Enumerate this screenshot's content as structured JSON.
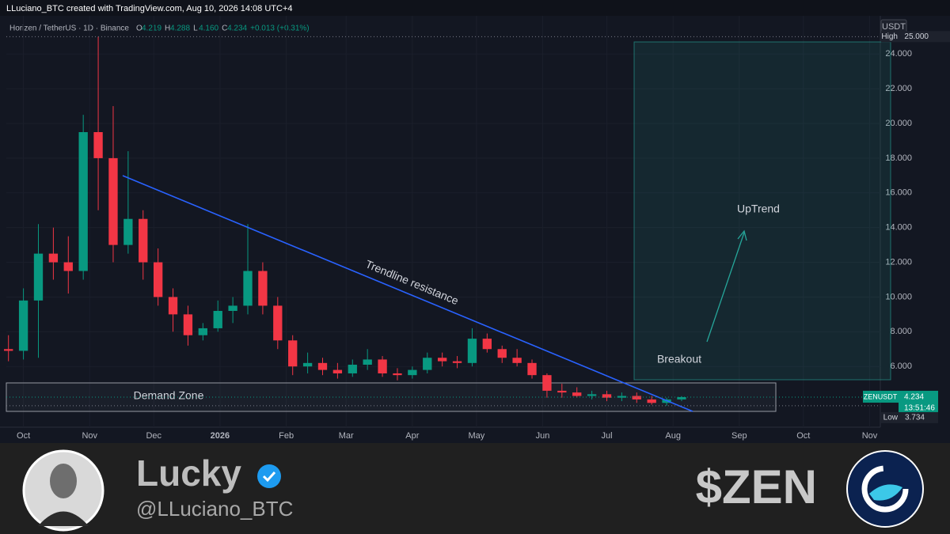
{
  "header": {
    "attribution": "LLuciano_BTC created with TradingView.com, Aug 10, 2026 14:08 UTC+4"
  },
  "chart_data": {
    "type": "candlestick",
    "symbol": "Horizen / TetherUS · 1D · Binance",
    "ohlc_legend": [
      {
        "label": "O",
        "value": "4.219"
      },
      {
        "label": "H",
        "value": "4.288"
      },
      {
        "label": "L",
        "value": "4.160"
      },
      {
        "label": "C",
        "value": "4.234"
      }
    ],
    "change": "+0.013 (+0.31%)",
    "currency": "USDT",
    "up_color": "#089981",
    "down_color": "#f23645",
    "grid": true,
    "xlim": [
      -8,
      401
    ],
    "ylim": [
      2.5,
      26.2
    ],
    "xticks": [
      {
        "value": 0,
        "label": "Oct"
      },
      {
        "value": 31,
        "label": "Nov"
      },
      {
        "value": 61,
        "label": "Dec"
      },
      {
        "value": 92,
        "label": "2026"
      },
      {
        "value": 123,
        "label": "Feb"
      },
      {
        "value": 151,
        "label": "Mar"
      },
      {
        "value": 182,
        "label": "Apr"
      },
      {
        "value": 212,
        "label": "May"
      },
      {
        "value": 243,
        "label": "Jun"
      },
      {
        "value": 273,
        "label": "Jul"
      },
      {
        "value": 304,
        "label": "Aug"
      },
      {
        "value": 335,
        "label": "Sep"
      },
      {
        "value": 365,
        "label": "Oct"
      },
      {
        "value": 396,
        "label": "Nov"
      }
    ],
    "yticks": [
      {
        "value": 6,
        "label": "6.000"
      },
      {
        "value": 8,
        "label": "8.000"
      },
      {
        "value": 10,
        "label": "10.000"
      },
      {
        "value": 12,
        "label": "12.000"
      },
      {
        "value": 14,
        "label": "14.000"
      },
      {
        "value": 16,
        "label": "16.000"
      },
      {
        "value": 18,
        "label": "18.000"
      },
      {
        "value": 20,
        "label": "20.000"
      },
      {
        "value": 22,
        "label": "22.000"
      },
      {
        "value": 24,
        "label": "24.000"
      }
    ],
    "x": [
      -7,
      0,
      7,
      14,
      21,
      28,
      35,
      42,
      49,
      56,
      63,
      70,
      77,
      84,
      91,
      98,
      105,
      112,
      119,
      126,
      133,
      140,
      147,
      154,
      161,
      168,
      175,
      182,
      189,
      196,
      203,
      210,
      217,
      224,
      231,
      238,
      245,
      252,
      259,
      266,
      273,
      280,
      287,
      294,
      301,
      308
    ],
    "ohlc": [
      [
        7.0,
        7.8,
        6.3,
        6.9
      ],
      [
        6.9,
        10.5,
        6.4,
        9.8
      ],
      [
        9.8,
        14.2,
        6.5,
        12.5
      ],
      [
        12.5,
        14.0,
        11.0,
        12.0
      ],
      [
        12.0,
        13.5,
        10.2,
        11.5
      ],
      [
        11.5,
        20.5,
        11.0,
        19.5
      ],
      [
        19.5,
        25.0,
        15.0,
        18.0
      ],
      [
        18.0,
        21.0,
        12.0,
        13.0
      ],
      [
        13.0,
        18.4,
        12.5,
        14.5
      ],
      [
        14.5,
        15.0,
        11.0,
        12.0
      ],
      [
        12.0,
        12.8,
        9.5,
        10.0
      ],
      [
        10.0,
        10.5,
        8.0,
        9.0
      ],
      [
        9.0,
        9.5,
        7.2,
        7.8
      ],
      [
        7.8,
        8.5,
        7.5,
        8.2
      ],
      [
        8.2,
        9.8,
        8.0,
        9.2
      ],
      [
        9.2,
        10.0,
        8.5,
        9.5
      ],
      [
        9.5,
        14.2,
        9.0,
        11.5
      ],
      [
        11.5,
        12.0,
        9.0,
        9.5
      ],
      [
        9.5,
        10.0,
        7.0,
        7.5
      ],
      [
        7.5,
        7.8,
        5.5,
        6.0
      ],
      [
        6.0,
        6.8,
        5.6,
        6.2
      ],
      [
        6.2,
        6.5,
        5.5,
        5.8
      ],
      [
        5.8,
        6.2,
        5.3,
        5.6
      ],
      [
        5.6,
        6.4,
        5.4,
        6.1
      ],
      [
        6.1,
        7.0,
        5.8,
        6.4
      ],
      [
        6.4,
        6.6,
        5.4,
        5.6
      ],
      [
        5.6,
        5.9,
        5.2,
        5.5
      ],
      [
        5.5,
        6.0,
        5.3,
        5.8
      ],
      [
        5.8,
        6.8,
        5.6,
        6.5
      ],
      [
        6.5,
        6.8,
        6.0,
        6.3
      ],
      [
        6.3,
        6.6,
        5.9,
        6.2
      ],
      [
        6.2,
        8.2,
        6.0,
        7.6
      ],
      [
        7.6,
        7.9,
        6.8,
        7.0
      ],
      [
        7.0,
        7.2,
        6.2,
        6.5
      ],
      [
        6.5,
        7.0,
        6.0,
        6.2
      ],
      [
        6.2,
        6.4,
        5.3,
        5.5
      ],
      [
        5.5,
        5.6,
        4.2,
        4.6
      ],
      [
        4.6,
        5.0,
        4.2,
        4.5
      ],
      [
        4.5,
        4.8,
        4.2,
        4.3
      ],
      [
        4.3,
        4.6,
        4.1,
        4.4
      ],
      [
        4.4,
        4.6,
        4.0,
        4.2
      ],
      [
        4.2,
        4.5,
        4.0,
        4.3
      ],
      [
        4.3,
        4.5,
        3.9,
        4.1
      ],
      [
        4.1,
        4.3,
        3.8,
        3.9
      ],
      [
        3.9,
        4.2,
        3.734,
        4.1
      ],
      [
        4.1,
        4.288,
        4.0,
        4.234
      ]
    ],
    "high_marker": {
      "label": "High",
      "value": 25,
      "value_label": "25.000"
    },
    "low_marker": {
      "label": "Low",
      "value": 3.734,
      "value_label": "3.734"
    },
    "last_price": {
      "label": "ZENUSDT",
      "value": 4.234,
      "value_label": "4.234",
      "countdown": "13:51:46"
    },
    "annotations": {
      "trendline": "Trendline resistance",
      "demand_zone": "Demand Zone",
      "uptrend": "UpTrend",
      "breakout": "Breakout"
    }
  },
  "footer": {
    "name": "Lucky",
    "handle": "@LLuciano_BTC",
    "ticker": "$ZEN"
  }
}
